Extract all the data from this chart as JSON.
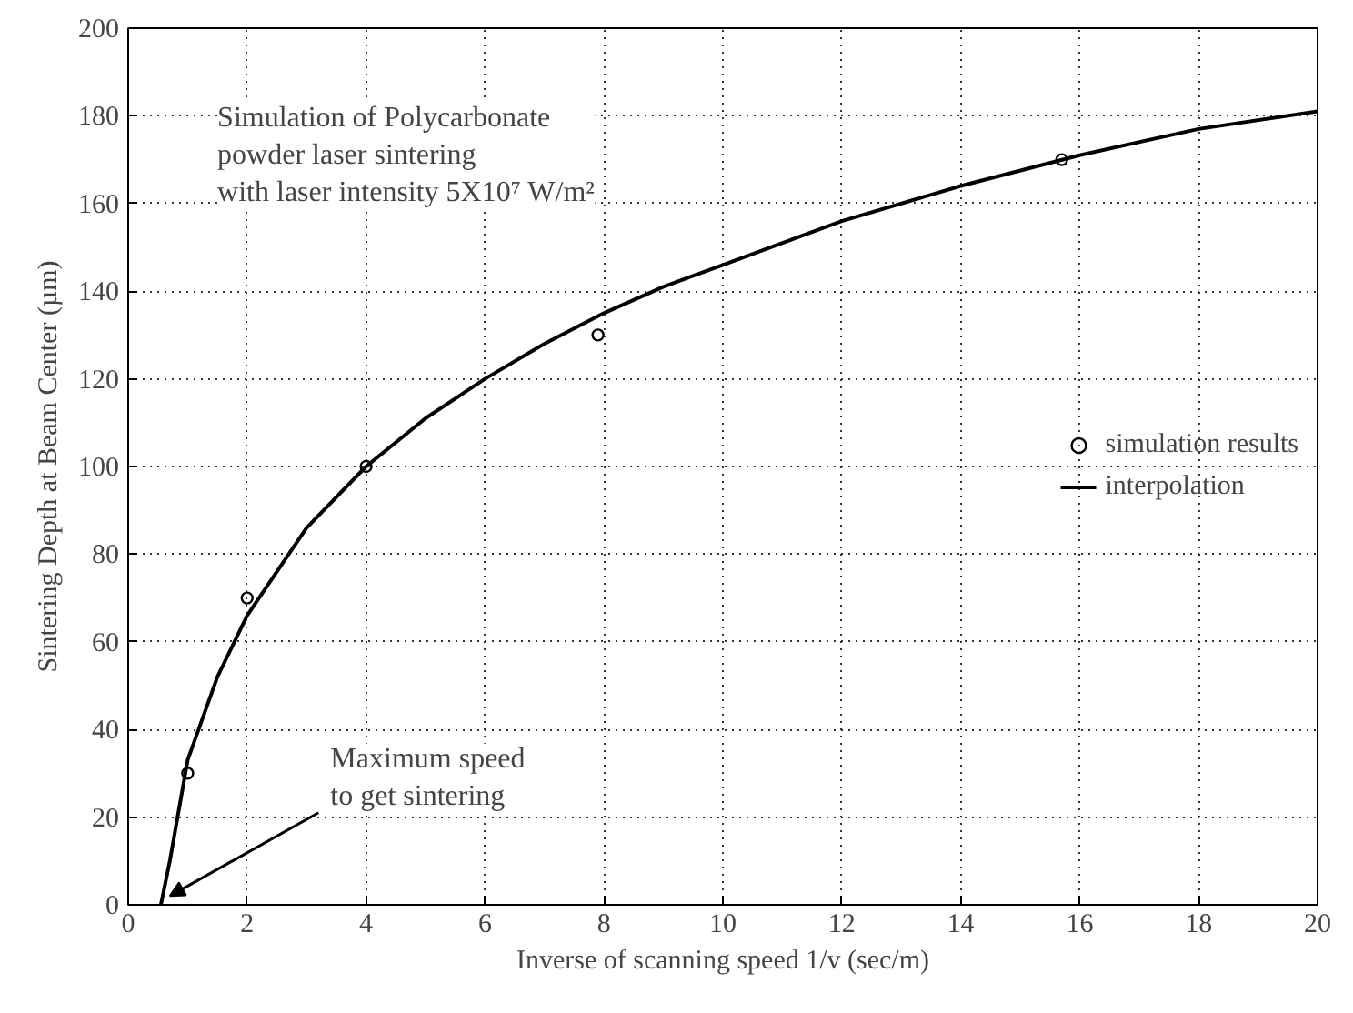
{
  "chart_data": {
    "type": "scatter",
    "xlabel": "Inverse of scanning speed 1/v (sec/m)",
    "ylabel": "Sintering Depth at Beam Center (µm)",
    "series": [
      {
        "name": "simulation results",
        "color": "#000000",
        "marker": "circle",
        "x": [
          1,
          2,
          4,
          7.9,
          15.7
        ],
        "values": [
          30,
          70,
          100,
          130,
          170
        ]
      },
      {
        "name": "interpolation",
        "type": "line",
        "color": "#000000",
        "marker": "none",
        "line_style": "solid",
        "x": [
          0.55,
          0.7,
          1,
          1.5,
          2,
          3,
          4,
          5,
          6,
          7,
          8,
          9,
          10,
          12,
          14,
          16,
          18,
          20
        ],
        "values": [
          0,
          10,
          33,
          52,
          66,
          86,
          100,
          111,
          120,
          128,
          135,
          141,
          146,
          156,
          164,
          171,
          177,
          181
        ]
      }
    ],
    "xlim": [
      0,
      20
    ],
    "ylim": [
      0,
      200
    ],
    "xticks": [
      0,
      2,
      4,
      6,
      8,
      10,
      12,
      14,
      16,
      18,
      20
    ],
    "yticks": [
      0,
      20,
      40,
      60,
      80,
      100,
      120,
      140,
      160,
      180,
      200
    ],
    "grid": true,
    "legend": "right",
    "annotations": [
      "Simulation of Polycarbonate\npowder laser sintering\nwith laser intensity 5X10⁷ W/m²",
      {
        "text": "Maximum speed\nto get sintering",
        "x": 0.7,
        "y": 2
      }
    ]
  }
}
